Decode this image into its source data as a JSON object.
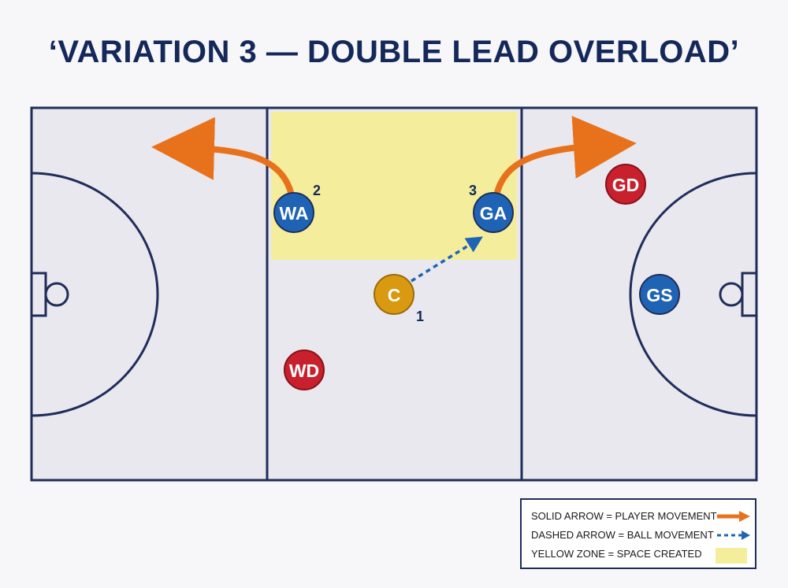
{
  "title": "‘VARIATION 3 — DOUBLE LEAD OVERLOAD’",
  "players": [
    {
      "id": "WA",
      "label": "WA",
      "team": "attack",
      "step": "2"
    },
    {
      "id": "GA",
      "label": "GA",
      "team": "attack",
      "step": "3"
    },
    {
      "id": "C",
      "label": "C",
      "team": "centre",
      "step": "1"
    },
    {
      "id": "GD",
      "label": "GD",
      "team": "defence",
      "step": ""
    },
    {
      "id": "WD",
      "label": "WD",
      "team": "defence",
      "step": ""
    },
    {
      "id": "GS",
      "label": "GS",
      "team": "attack",
      "step": ""
    }
  ],
  "legend": {
    "solid": "SOLID ARROW = PLAYER MOVEMENT",
    "dashed": "DASHED ARROW = BALL MOVEMENT",
    "zone": "YELLOW ZONE = SPACE CREATED"
  },
  "colors": {
    "court_bg": "#e8e8ee",
    "court_line": "#1f2d5a",
    "attack": "#1f64b4",
    "defence": "#c8202c",
    "centre": "#d99a12",
    "movement_arrow": "#e8721c",
    "ball_arrow": "#1f64b4",
    "zone": "#f4ee9c",
    "title": "#14285a"
  }
}
